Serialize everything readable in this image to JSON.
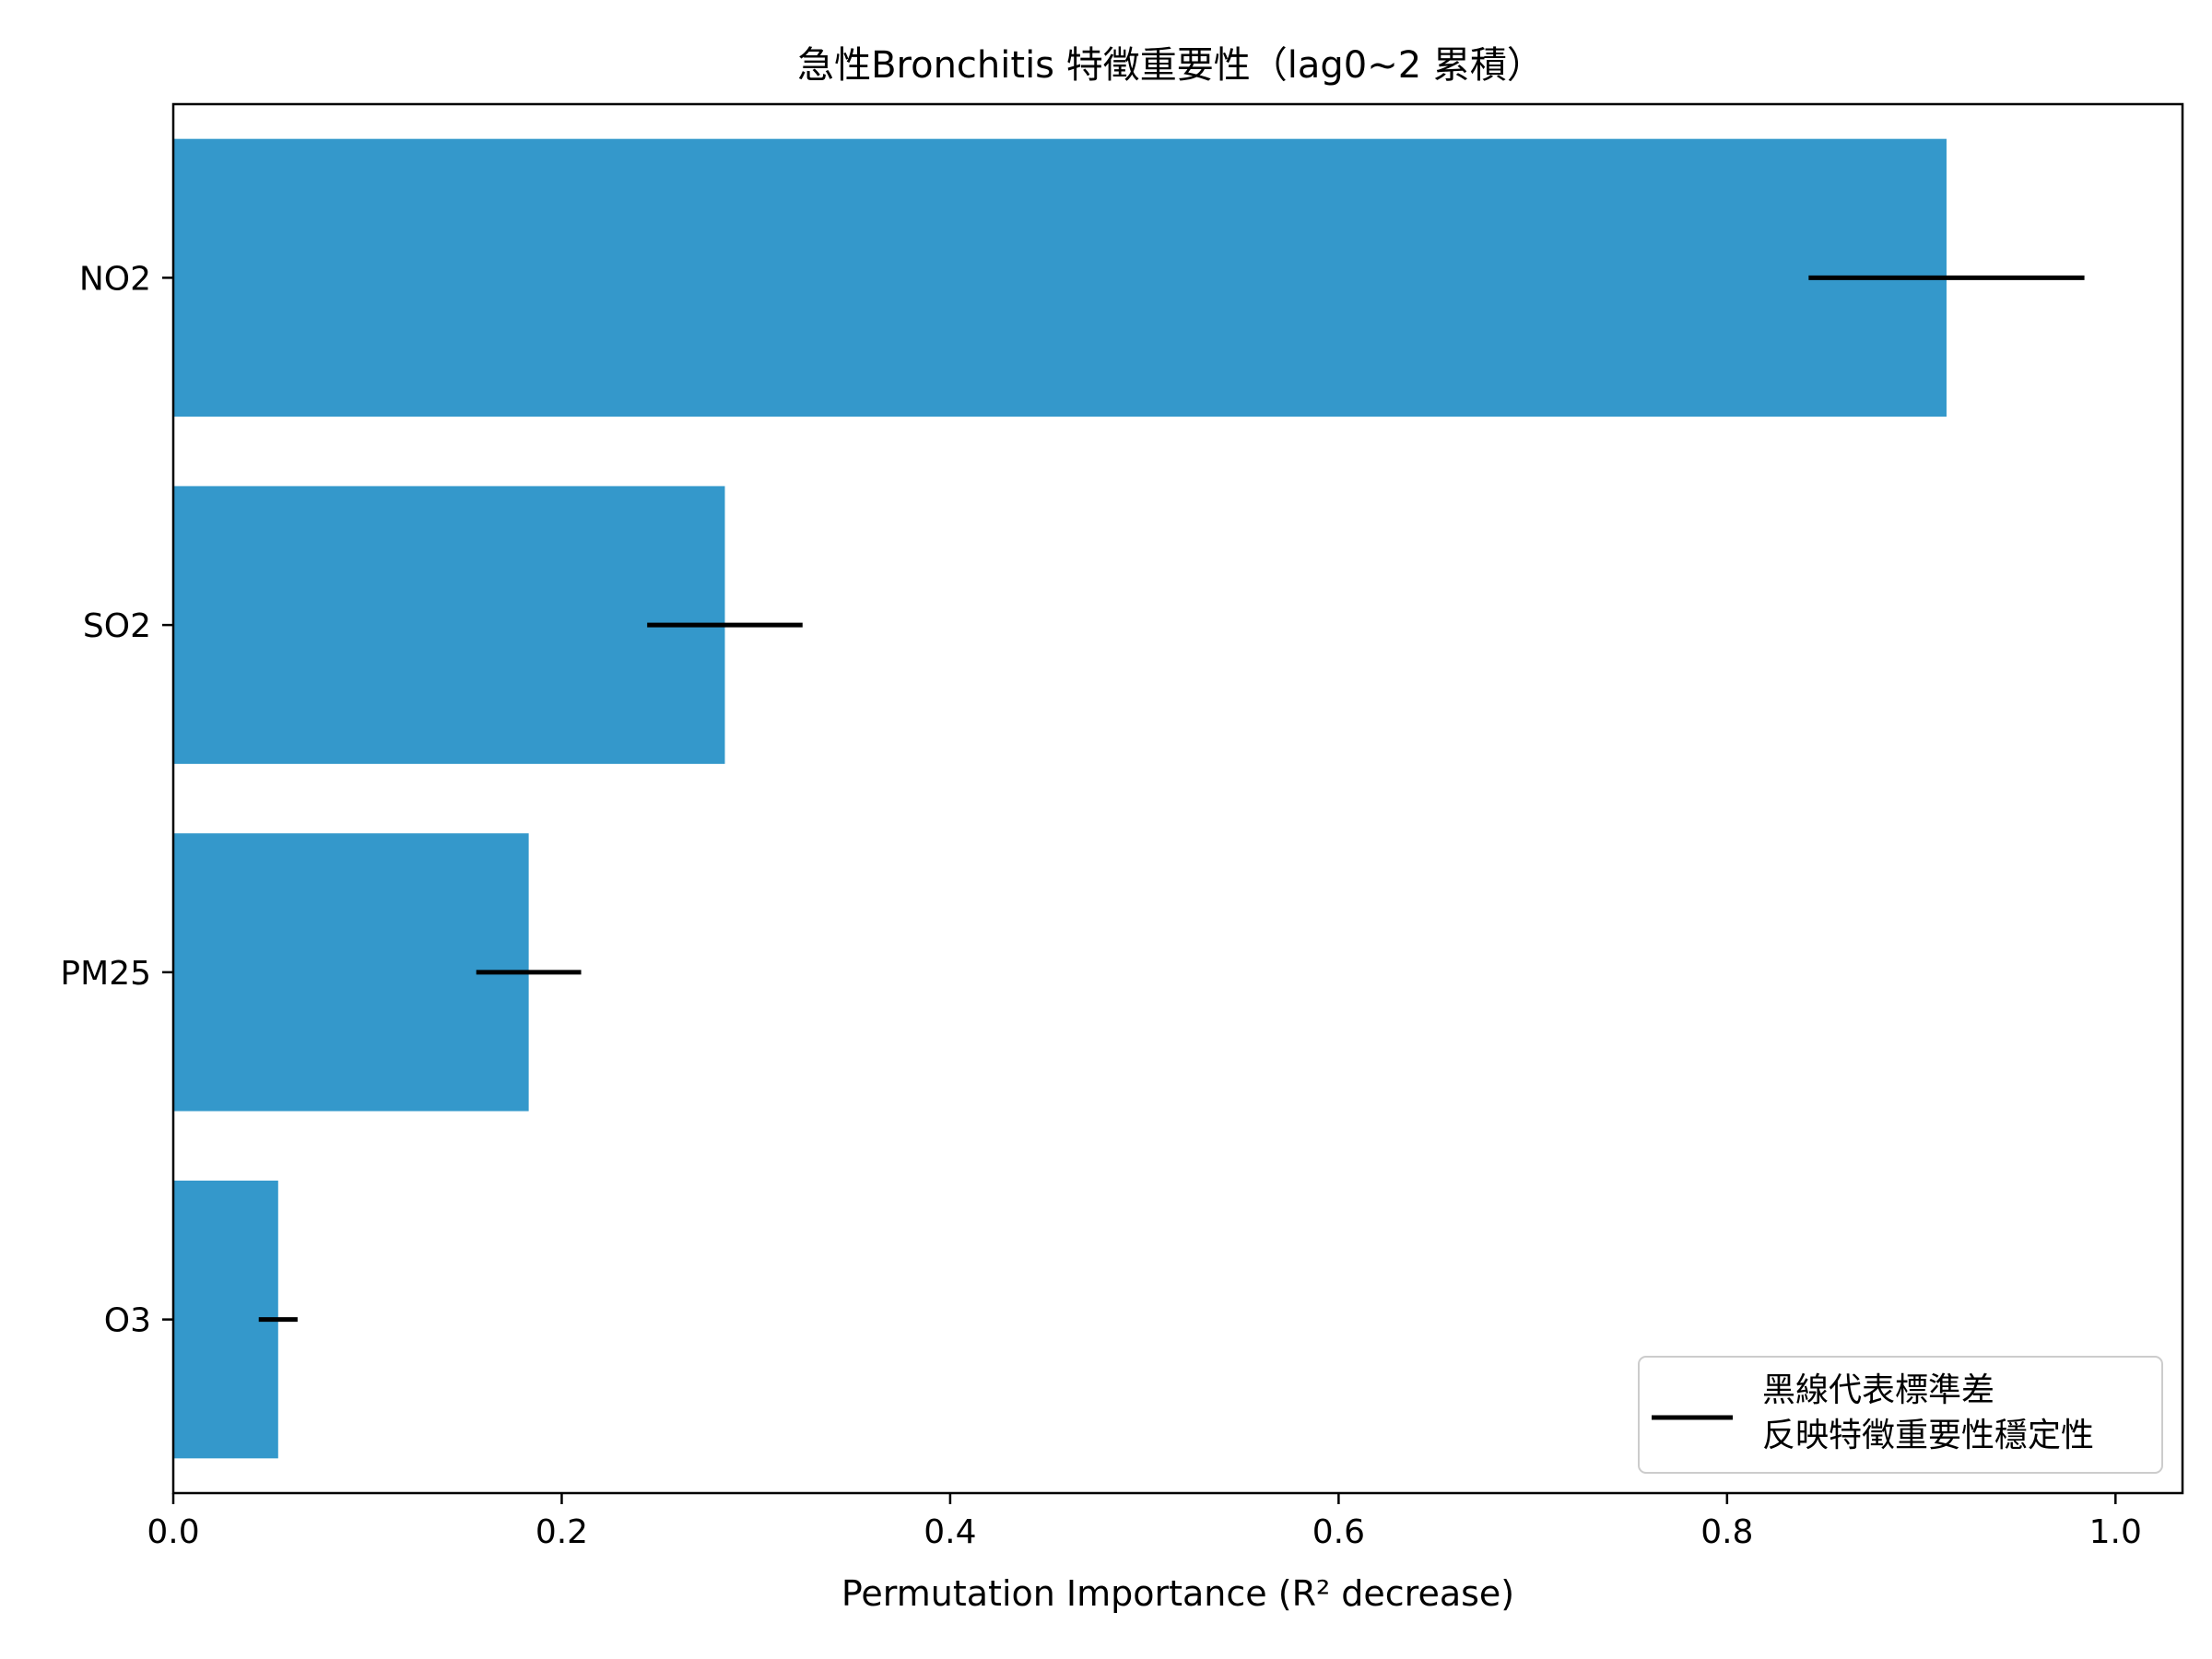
{
  "chart_data": {
    "type": "bar",
    "orientation": "horizontal",
    "title": "急性Bronchitis 特徵重要性（lag0~2 累積）",
    "xlabel": "Permutation Importance (R² decrease)",
    "ylabel": "",
    "categories": [
      "NO2",
      "SO2",
      "PM25",
      "O3"
    ],
    "values": [
      0.913,
      0.284,
      0.183,
      0.054
    ],
    "error_std": [
      0.071,
      0.04,
      0.027,
      0.01
    ],
    "xlim": [
      0.0,
      1.0345
    ],
    "xticks": [
      0.0,
      0.2,
      0.4,
      0.6,
      0.8,
      1.0
    ],
    "xtick_labels": [
      "0.0",
      "0.2",
      "0.4",
      "0.6",
      "0.8",
      "1.0"
    ],
    "bar_color": "#3498cb",
    "error_color": "#000000",
    "grid": false,
    "legend": {
      "placement": "lower-right",
      "lines": [
        "黑線代表標準差",
        "反映特徵重要性穩定性"
      ]
    }
  }
}
